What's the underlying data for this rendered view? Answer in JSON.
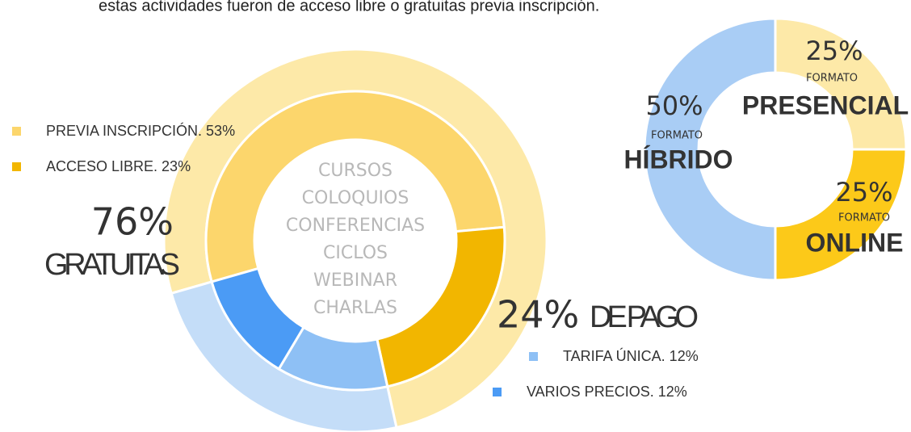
{
  "caption": "estas actividades fueron de acceso libre o gratuitas previa inscripción.",
  "chart_data": [
    {
      "type": "sunburst",
      "center_labels": [
        "CURSOS",
        "COLOQUIOS",
        "CONFERENCIAS",
        "CICLOS",
        "WEBINAR",
        "CHARLAS"
      ],
      "outer": {
        "categories": [
          "GRATUITAS",
          "DE PAGO"
        ],
        "values": [
          76,
          24
        ],
        "value_labels": [
          "76%",
          "24%"
        ],
        "colors": [
          "#fde9a8",
          "#c4ddf8"
        ]
      },
      "inner": {
        "categories": [
          "PREVIA INSCRIPCIÓN. 53%",
          "ACCESO LIBRE. 23%",
          "TARIFA ÚNICA. 12%",
          "VARIOS PRECIOS. 12%"
        ],
        "values": [
          53,
          23,
          12,
          12
        ],
        "colors": [
          "#fcd66c",
          "#f2b600",
          "#8ec0f5",
          "#4b9bf5"
        ]
      }
    },
    {
      "type": "donut",
      "sublabel": "FORMATO",
      "categories": [
        "PRESENCIAL",
        "ONLINE",
        "HÍBRIDO"
      ],
      "values": [
        25,
        25,
        50
      ],
      "value_labels": [
        "25%",
        "25%",
        "50%"
      ],
      "colors": [
        "#fde9a8",
        "#fcc919",
        "#a9cdf5"
      ]
    }
  ]
}
